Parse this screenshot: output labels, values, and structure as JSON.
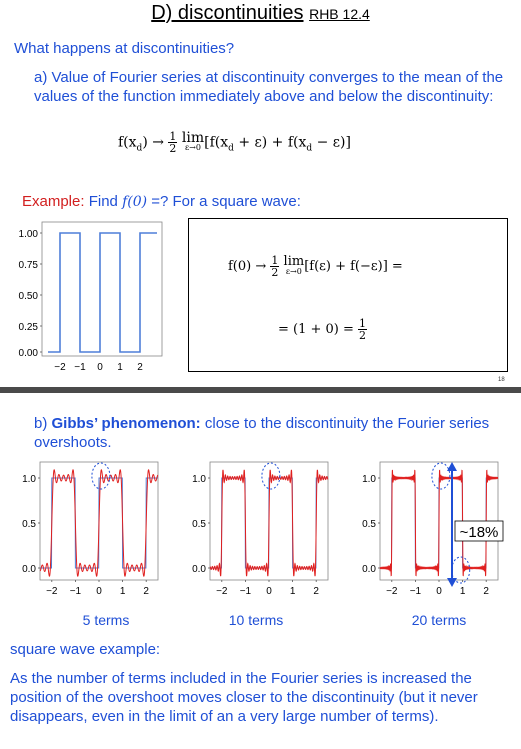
{
  "title": {
    "main": "D) discontinuities",
    "ref": "RHB 12.4"
  },
  "question": "What happens at discontinuities?",
  "part_a": "a) Value of Fourier series at discontinuity converges to the mean of the values of the function immediately above and below the discontinuity:",
  "eq1": {
    "lhs": "f(x",
    "sub_d": "d",
    "arrow": ") →",
    "frac_num": "1",
    "frac_den": "2",
    "lim": "lim",
    "lim_sub": "ε→0",
    "body": "[f(x",
    "body2": " + ε) + f(x",
    "body3": " − ε)]"
  },
  "example": {
    "label": "Example:",
    "text": "Find",
    "f0": "f(0)",
    "rest": "=? For a square wave:"
  },
  "box_eq": {
    "line1_lhs": "f(0) →",
    "frac_num": "1",
    "frac_den": "2",
    "lim": "lim",
    "lim_sub": "ε→0",
    "line1_body": "[f(ε) + f(−ε)] =",
    "line2": "= (1 + 0) =",
    "frac2_num": "1",
    "frac2_den": "2"
  },
  "page_number": "18",
  "part_b": {
    "label": "b)",
    "bold": "Gibbs’ phenomenon:",
    "text": "close to the discontinuity the Fourier series overshoots."
  },
  "square_plot": {
    "yticks": [
      "1.00",
      "0.75",
      "0.50",
      "0.25",
      "0.00"
    ],
    "xticks": [
      "−2",
      "−1",
      "0",
      "1",
      "2"
    ]
  },
  "gibbs_plots": [
    {
      "caption": "5 terms",
      "yticks": [
        "1.0",
        "0.5",
        "0.0"
      ],
      "xticks": [
        "−2",
        "−1",
        "0",
        "1",
        "2"
      ]
    },
    {
      "caption": "10 terms",
      "yticks": [
        "1.0",
        "0.5",
        "0.0"
      ],
      "xticks": [
        "−2",
        "−1",
        "0",
        "1",
        "2"
      ]
    },
    {
      "caption": "20 terms",
      "yticks": [
        "1.0",
        "0.5",
        "0.0"
      ],
      "xticks": [
        "−2",
        "−1",
        "0",
        "1",
        "2"
      ]
    }
  ],
  "overshoot_label": "~18%",
  "square_wave_example": "square wave example:",
  "conclusion": "As the number of terms included in the Fourier series is increased the position of the overshoot moves closer to the discontinuity (but it never disappears, even in the limit of an a very large number of terms).",
  "colors": {
    "blue_text": "#1f4fd6",
    "red_text": "#d21f1f",
    "square_line": "#4f7fd8",
    "fourier_line": "#e0201f",
    "arrow": "#1f4fd6"
  }
}
